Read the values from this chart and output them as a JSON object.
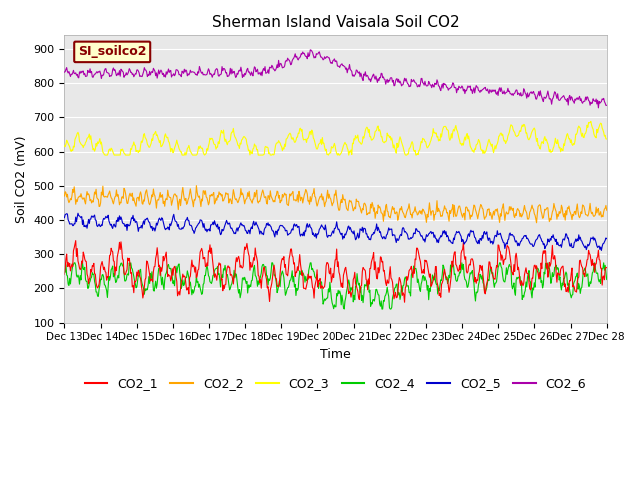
{
  "title": "Sherman Island Vaisala Soil CO2",
  "xlabel": "Time",
  "ylabel": "Soil CO2 (mV)",
  "ylim": [
    100,
    940
  ],
  "yticks": [
    100,
    200,
    300,
    400,
    500,
    600,
    700,
    800,
    900
  ],
  "xlim": [
    0,
    360
  ],
  "xtick_positions": [
    0,
    24,
    48,
    72,
    96,
    120,
    144,
    168,
    192,
    216,
    240,
    264,
    288,
    312,
    336,
    360
  ],
  "xtick_labels": [
    "Dec 13",
    "Dec 14",
    "Dec 15",
    "Dec 16",
    "Dec 17",
    "Dec 18",
    "Dec 19",
    "Dec 20",
    "Dec 21",
    "Dec 22",
    "Dec 23",
    "Dec 24",
    "Dec 25",
    "Dec 26",
    "Dec 27",
    "Dec 28"
  ],
  "colors": {
    "CO2_1": "#ff0000",
    "CO2_2": "#ffa500",
    "CO2_3": "#ffff00",
    "CO2_4": "#00cc00",
    "CO2_5": "#0000cc",
    "CO2_6": "#aa00aa"
  },
  "legend_label": "SI_soilco2",
  "legend_bg": "#ffffcc",
  "legend_border": "#880000",
  "plot_bg": "#e8e8e8",
  "n_points": 720
}
